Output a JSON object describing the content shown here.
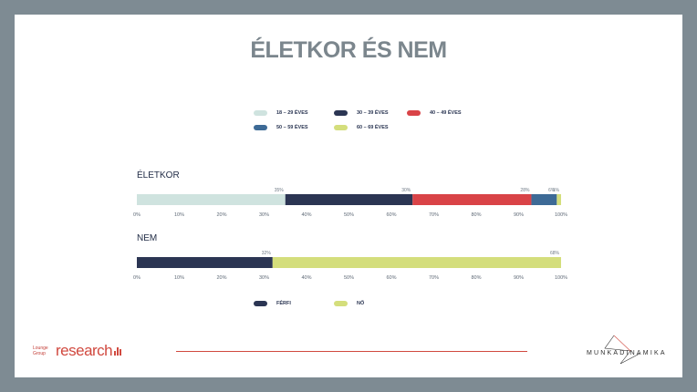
{
  "title": "ÉLETKOR ÉS NEM",
  "legend_age": [
    {
      "label": "18 – 29 ÉVES",
      "color": "#cfe3df"
    },
    {
      "label": "30 – 39 ÉVES",
      "color": "#2b3553"
    },
    {
      "label": "40 – 49 ÉVES",
      "color": "#d94347"
    },
    {
      "label": "50 – 59 ÉVES",
      "color": "#3d6a96"
    },
    {
      "label": "60 – 69 ÉVES",
      "color": "#d4de7c"
    }
  ],
  "legend_gender": [
    {
      "label": "FÉRFI",
      "color": "#2b3553"
    },
    {
      "label": "NŐ",
      "color": "#d4de7c"
    }
  ],
  "chart_data": [
    {
      "type": "bar",
      "orientation": "horizontal-stacked",
      "label": "ÉLETKOR",
      "categories": [
        "ÉLETKOR"
      ],
      "series": [
        {
          "name": "18 – 29 ÉVES",
          "values": [
            35
          ],
          "color": "#cfe3df",
          "data_label": "35%"
        },
        {
          "name": "30 – 39 ÉVES",
          "values": [
            30
          ],
          "color": "#2b3553",
          "data_label": "30%"
        },
        {
          "name": "40 – 49 ÉVES",
          "values": [
            28
          ],
          "color": "#d94347",
          "data_label": "28%"
        },
        {
          "name": "50 – 59 ÉVES",
          "values": [
            6
          ],
          "color": "#3d6a96",
          "data_label": "6%"
        },
        {
          "name": "60 – 69 ÉVES",
          "values": [
            1
          ],
          "color": "#d4de7c",
          "data_label": "1%"
        }
      ],
      "xlim": [
        0,
        100
      ],
      "ticks": [
        "0%",
        "10%",
        "20%",
        "30%",
        "40%",
        "50%",
        "60%",
        "70%",
        "80%",
        "90%",
        "100%"
      ]
    },
    {
      "type": "bar",
      "orientation": "horizontal-stacked",
      "label": "NEM",
      "categories": [
        "NEM"
      ],
      "series": [
        {
          "name": "FÉRFI",
          "values": [
            32
          ],
          "color": "#2b3553",
          "data_label": "32%"
        },
        {
          "name": "NŐ",
          "values": [
            68
          ],
          "color": "#d4de7c",
          "data_label": "68%"
        }
      ],
      "xlim": [
        0,
        100
      ],
      "ticks": [
        "0%",
        "10%",
        "20%",
        "30%",
        "40%",
        "50%",
        "60%",
        "70%",
        "80%",
        "90%",
        "100%"
      ]
    }
  ],
  "footer": {
    "left_logo_small": "Lounge Group",
    "left_logo_big": "research",
    "right_logo": "MUNKADINAMIKA"
  }
}
